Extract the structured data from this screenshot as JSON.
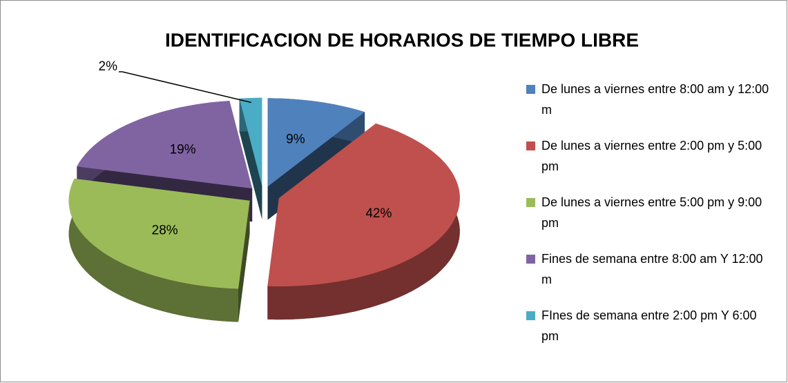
{
  "chart_data": {
    "type": "pie",
    "title": "IDENTIFICACION DE HORARIOS DE TIEMPO LIBRE",
    "categories": [
      "De lunes a viernes entre 8:00 am y 12:00 m",
      "De lunes a viernes entre 2:00 pm y 5:00 pm",
      "De lunes a viernes entre 5:00 pm y 9:00 pm",
      "Fines de semana entre 8:00 am Y 12:00 m",
      "FInes de semana entre 2:00 pm Y 6:00 pm"
    ],
    "values": [
      9,
      42,
      28,
      19,
      2
    ],
    "value_labels": [
      "9%",
      "42%",
      "28%",
      "19%",
      "2%"
    ],
    "colors": [
      "#4f81bd",
      "#c0504d",
      "#9bbb59",
      "#8064a2",
      "#4bacc6"
    ],
    "legend": "right"
  }
}
